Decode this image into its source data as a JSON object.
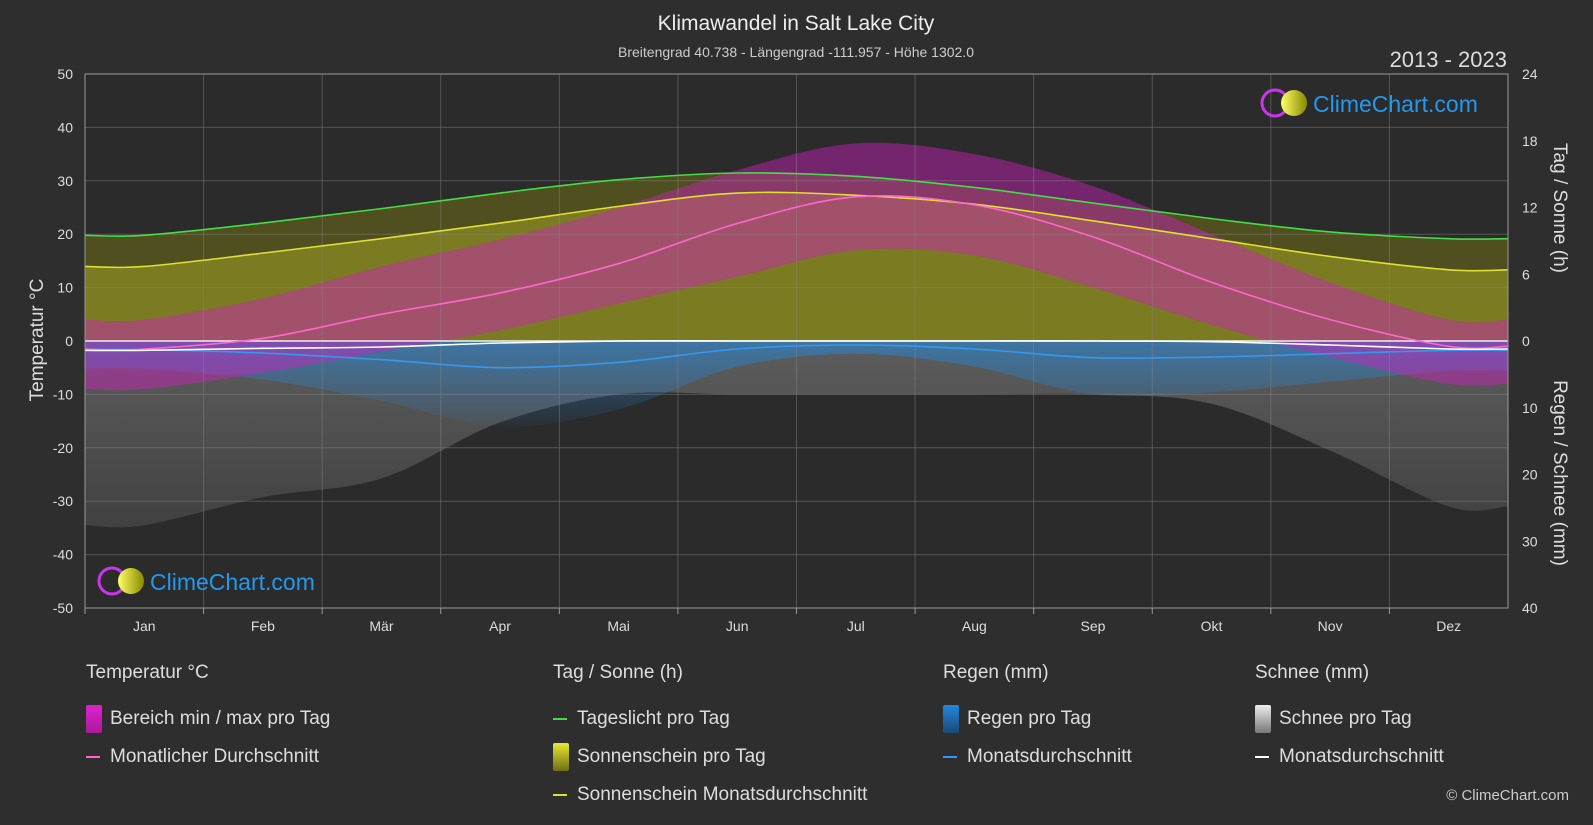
{
  "chart_data": {
    "type": "area",
    "title": "Klimawandel in Salt Lake City",
    "subtitle": "Breitengrad 40.738 - Längengrad -111.957 - Höhe 1302.0",
    "year_range": "2013 - 2023",
    "brand": "ClimeChart.com",
    "copyright": "© ClimeChart.com",
    "months": [
      "Jan",
      "Feb",
      "Mär",
      "Apr",
      "Mai",
      "Jun",
      "Jul",
      "Aug",
      "Sep",
      "Okt",
      "Nov",
      "Dez"
    ],
    "y_left": {
      "label": "Temperatur °C",
      "min": -50,
      "max": 50,
      "ticks": [
        50,
        40,
        30,
        20,
        10,
        0,
        -10,
        -20,
        -30,
        -40,
        -50
      ]
    },
    "y_right_top": {
      "label": "Tag / Sonne (h)",
      "min": 0,
      "max": 24,
      "ticks": [
        24,
        18,
        12,
        6,
        0
      ]
    },
    "y_right_bottom": {
      "label": "Regen / Schnee (mm)",
      "min": 0,
      "max": 40,
      "ticks": [
        0,
        10,
        20,
        30,
        40
      ]
    },
    "series": [
      {
        "name": "Tageslicht pro Tag",
        "unit": "h",
        "color": "#44dd44",
        "values": [
          9.5,
          10.6,
          11.9,
          13.3,
          14.5,
          15.1,
          14.8,
          13.8,
          12.4,
          11.0,
          9.8,
          9.2
        ]
      },
      {
        "name": "Sonnenschein Monatsdurchschnitt",
        "unit": "h",
        "color": "#e0e030",
        "values": [
          6.7,
          7.9,
          9.2,
          10.6,
          12.1,
          13.3,
          13.1,
          12.3,
          10.8,
          9.2,
          7.6,
          6.4
        ]
      },
      {
        "name": "Monatlicher Durchschnitt",
        "unit": "°C",
        "color": "#ff66cc",
        "values": [
          -1.5,
          0.5,
          5.0,
          9.0,
          14.5,
          22.0,
          27.0,
          25.5,
          19.5,
          11.0,
          4.0,
          -1.0
        ]
      },
      {
        "name": "Regen Monatsdurchschnitt",
        "unit": "mm",
        "color": "#3399ee",
        "values": [
          1.3,
          1.8,
          2.8,
          4.0,
          3.2,
          1.2,
          0.6,
          1.2,
          2.5,
          2.4,
          1.9,
          1.4
        ]
      },
      {
        "name": "Schnee Monatsdurchschnitt",
        "unit": "mm",
        "color": "#ffffff",
        "values": [
          1.4,
          1.1,
          0.9,
          0.3,
          0.0,
          0.0,
          0.0,
          0.0,
          0.0,
          0.1,
          0.6,
          1.2
        ]
      }
    ],
    "temp_range_daily": {
      "name": "Bereich min / max pro Tag",
      "max": [
        4,
        8,
        14,
        19,
        25,
        32,
        37,
        35,
        29,
        20,
        11,
        4
      ],
      "min": [
        -9,
        -6,
        -2,
        2,
        7,
        12,
        17,
        16,
        10,
        3,
        -3,
        -8
      ]
    },
    "grid": true
  },
  "legend": {
    "groups": [
      {
        "title": "Temperatur °C",
        "items": [
          {
            "label": "Bereich min / max pro Tag",
            "kind": "box",
            "color": "#e020d0"
          },
          {
            "label": "Monatlicher Durchschnitt",
            "kind": "line",
            "color": "#ff66cc"
          }
        ]
      },
      {
        "title": "Tag / Sonne (h)",
        "items": [
          {
            "label": "Tageslicht pro Tag",
            "kind": "line",
            "color": "#44dd44"
          },
          {
            "label": "Sonnenschein pro Tag",
            "kind": "box",
            "color": "#d8d820"
          },
          {
            "label": "Sonnenschein Monatsdurchschnitt",
            "kind": "line",
            "color": "#e0e030"
          }
        ]
      },
      {
        "title": "Regen (mm)",
        "items": [
          {
            "label": "Regen pro Tag",
            "kind": "box",
            "color": "#2288dd"
          },
          {
            "label": "Monatsdurchschnitt",
            "kind": "line",
            "color": "#3399ee"
          }
        ]
      },
      {
        "title": "Schnee (mm)",
        "items": [
          {
            "label": "Schnee pro Tag",
            "kind": "box",
            "color": "#dddddd"
          },
          {
            "label": "Monatsdurchschnitt",
            "kind": "line",
            "color": "#ffffff"
          }
        ]
      }
    ]
  }
}
